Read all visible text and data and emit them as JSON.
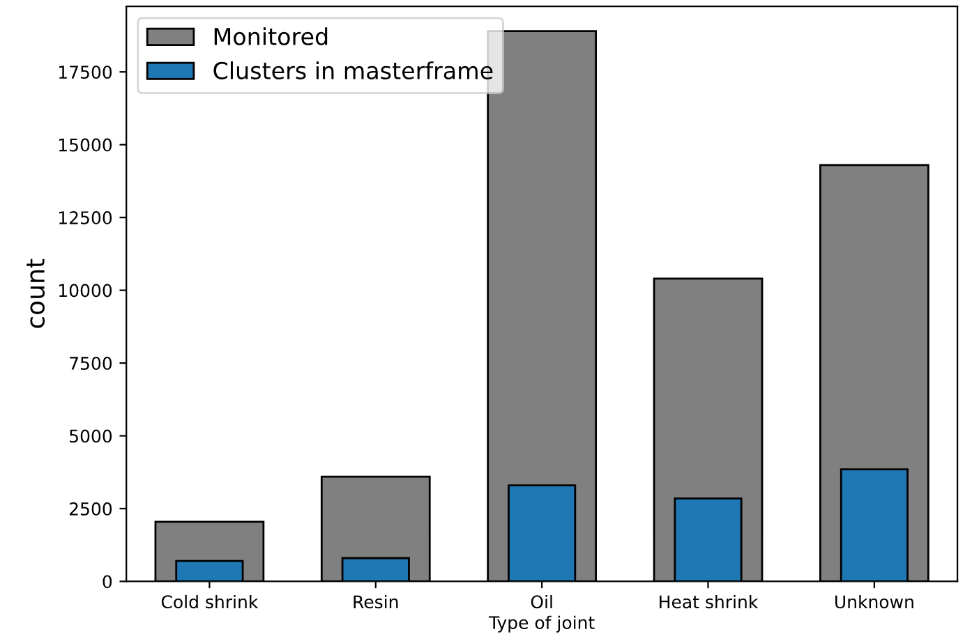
{
  "chart_data": {
    "type": "bar",
    "xlabel": "Type of joint",
    "ylabel": "count",
    "categories": [
      "Cold shrink",
      "Resin",
      "Oil",
      "Heat shrink",
      "Unknown"
    ],
    "series": [
      {
        "name": "Monitored",
        "color": "#808080",
        "values": [
          2050,
          3600,
          18900,
          10400,
          14300
        ]
      },
      {
        "name": "Clusters in masterframe",
        "color": "#1f77b4",
        "values": [
          700,
          800,
          3300,
          2850,
          3850
        ]
      }
    ],
    "ylim": [
      0,
      19750
    ],
    "yticks": [
      0,
      2500,
      5000,
      7500,
      10000,
      12500,
      15000,
      17500
    ],
    "legend": "top left",
    "grid": false
  }
}
